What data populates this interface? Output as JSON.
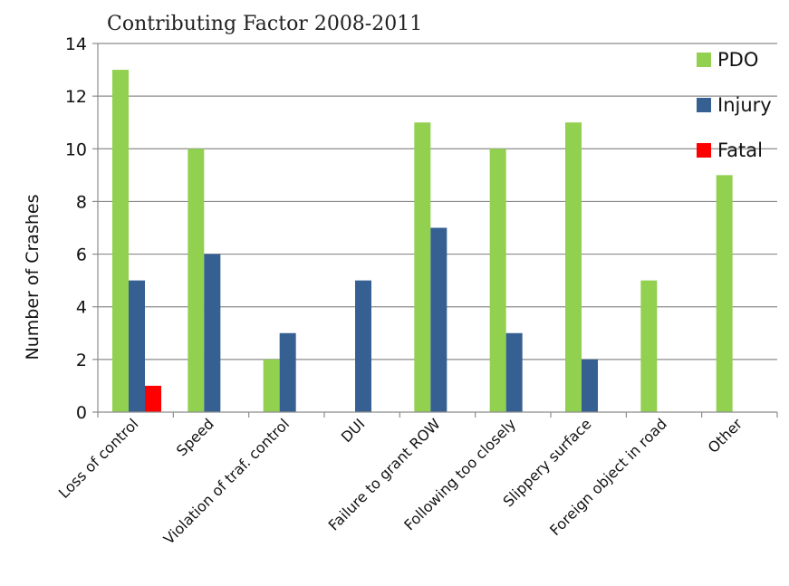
{
  "chart_data": {
    "type": "bar",
    "title": "Contributing Factor 2008-2011",
    "ylabel": "Number of Crashes",
    "xlabel": "",
    "ylim": [
      0,
      14
    ],
    "yticks": [
      0,
      2,
      4,
      6,
      8,
      10,
      12,
      14
    ],
    "grid": true,
    "legend_position": "right",
    "categories": [
      "Loss of control",
      "Speed",
      "Violation of traf. control",
      "DUI",
      "Failure to grant ROW",
      "Following too closely",
      "Slippery surface",
      "Foreign object in road",
      "Other"
    ],
    "series": [
      {
        "name": "PDO",
        "color": "#92D050",
        "values": [
          13,
          10,
          2,
          0,
          11,
          10,
          11,
          5,
          9
        ]
      },
      {
        "name": "Injury",
        "color": "#366092",
        "values": [
          5,
          6,
          3,
          5,
          7,
          3,
          2,
          0,
          0
        ]
      },
      {
        "name": "Fatal",
        "color": "#FF0000",
        "values": [
          1,
          0,
          0,
          0,
          0,
          0,
          0,
          0,
          0
        ]
      }
    ]
  }
}
